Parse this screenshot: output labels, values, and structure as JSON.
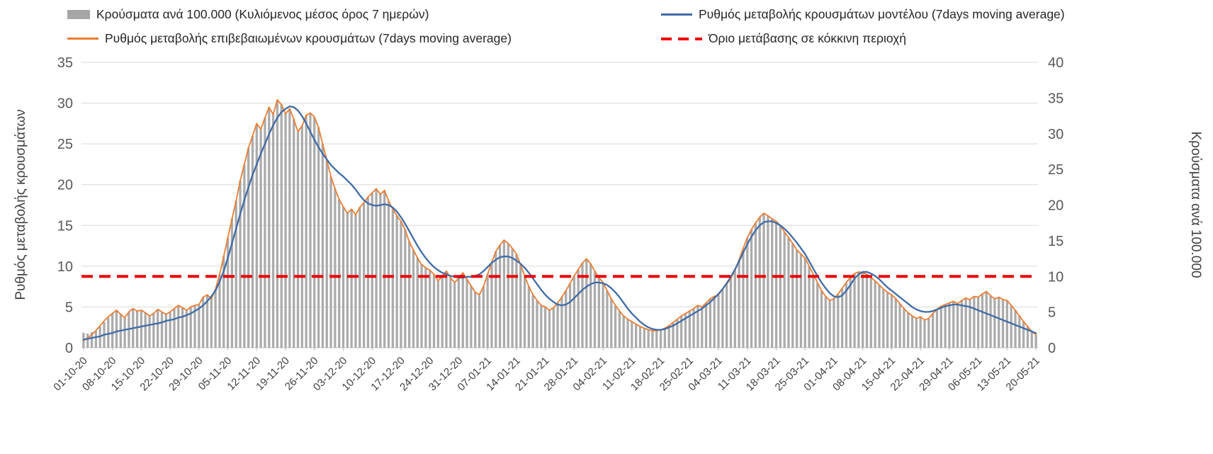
{
  "legend": [
    {
      "label": "Κρούσματα ανά 100.000 (Κυλιόμενος μέσος όρος 7 ημερών)",
      "swatch": "bar",
      "color": "#A6A6A6"
    },
    {
      "label": "Ρυθμός μεταβολής κρουσμάτων μοντέλου (7days moving average)",
      "swatch": "line",
      "color": "#3F6BA6"
    },
    {
      "label": "Ρυθμός μεταβολής επιβεβαιωμένων κρουσμάτων (7days moving average)",
      "swatch": "line",
      "color": "#ED7D31"
    },
    {
      "label": "Όριο μετάβασης σε κόκκινη περιοχή",
      "swatch": "dash",
      "color": "#EE0000"
    }
  ],
  "chart_data": {
    "type": "bar+line",
    "title": "",
    "x": {
      "tick_labels": [
        "01-10-20",
        "08-10-20",
        "15-10-20",
        "22-10-20",
        "29-10-20",
        "05-11-20",
        "12-11-20",
        "19-11-20",
        "26-11-20",
        "03-12-20",
        "10-12-20",
        "17-12-20",
        "24-12-20",
        "31-12-20",
        "07-01-21",
        "14-01-21",
        "21-01-21",
        "28-01-21",
        "04-02-21",
        "11-02-21",
        "18-02-21",
        "25-02-21",
        "04-03-21",
        "11-03-21",
        "18-03-21",
        "25-03-21",
        "01-04-21",
        "08-04-21",
        "15-04-21",
        "22-04-21",
        "29-04-21",
        "06-05-21",
        "13-05-21",
        "20-05-21"
      ],
      "points_per_tick": 7
    },
    "left_axis": {
      "label": "Ρυθμός μεταβολής κρουσμάτων",
      "min": 0,
      "max": 35,
      "step": 5
    },
    "right_axis": {
      "label": "Κρούσματα ανά 100.000",
      "min": 0,
      "max": 40,
      "step": 5
    },
    "threshold": {
      "name": "Όριο μετάβασης σε κόκκινη περιοχή",
      "axis": "left",
      "value": 8.75,
      "color": "#EE0000"
    },
    "grid_color": "#D9D9D9",
    "axis_line_color": "#BFBFBF",
    "tick_text_color": "#595959",
    "x_text_color": "#404040",
    "series": [
      {
        "name": "Κρούσματα ανά 100.000 (Κυλιόμενος μέσος όρος 7 ημερών)",
        "type": "bar",
        "axis": "right",
        "color": "#ABABAB",
        "values": [
          2.1,
          2.0,
          2.2,
          2.4,
          3.0,
          3.6,
          4.2,
          4.8,
          5.3,
          4.7,
          4.2,
          5.0,
          5.5,
          5.1,
          5.3,
          4.9,
          4.5,
          4.8,
          5.4,
          5.0,
          4.7,
          5.0,
          5.5,
          5.9,
          5.6,
          5.3,
          5.7,
          5.9,
          6.1,
          7.1,
          7.4,
          6.9,
          8.2,
          10.3,
          12.8,
          15.4,
          18.1,
          20.6,
          23.4,
          25.7,
          28.0,
          29.7,
          31.4,
          30.6,
          32.2,
          33.7,
          32.7,
          34.7,
          34.1,
          32.8,
          33.5,
          32.0,
          30.3,
          31.1,
          32.6,
          32.9,
          32.3,
          30.9,
          28.6,
          26.3,
          24.0,
          22.3,
          20.8,
          19.8,
          18.9,
          19.4,
          18.6,
          19.7,
          20.3,
          21.1,
          21.7,
          22.3,
          21.5,
          22.1,
          20.6,
          19.4,
          18.5,
          17.7,
          16.6,
          14.9,
          13.7,
          12.6,
          11.7,
          11.2,
          10.9,
          10.3,
          9.4,
          10.1,
          10.7,
          9.8,
          9.1,
          9.7,
          10.5,
          9.6,
          8.7,
          7.8,
          7.4,
          8.6,
          10.3,
          12.0,
          13.5,
          14.4,
          15.1,
          14.6,
          13.9,
          13.1,
          11.7,
          10.1,
          8.6,
          7.4,
          6.6,
          5.9,
          5.7,
          5.3,
          5.6,
          6.3,
          7.1,
          8.0,
          9.0,
          10.1,
          11.0,
          11.9,
          12.5,
          11.8,
          10.7,
          9.8,
          9.1,
          8.0,
          6.9,
          5.9,
          5.1,
          4.5,
          4.0,
          3.7,
          3.3,
          3.0,
          2.7,
          2.5,
          2.4,
          2.4,
          2.5,
          2.7,
          3.1,
          3.5,
          4.0,
          4.5,
          4.8,
          5.1,
          5.5,
          5.9,
          5.7,
          6.3,
          6.9,
          7.2,
          7.4,
          8.2,
          8.9,
          9.7,
          10.9,
          12.3,
          13.9,
          15.4,
          16.6,
          17.5,
          18.3,
          18.9,
          18.5,
          18.1,
          17.7,
          17.1,
          16.2,
          15.4,
          14.6,
          13.7,
          13.1,
          12.6,
          11.4,
          10.3,
          9.1,
          8.0,
          7.2,
          6.6,
          6.9,
          7.5,
          8.3,
          9.1,
          9.8,
          10.4,
          10.6,
          10.5,
          10.3,
          9.8,
          9.4,
          8.8,
          8.2,
          7.8,
          7.4,
          6.9,
          6.2,
          5.5,
          4.9,
          4.5,
          4.1,
          4.3,
          3.9,
          4.1,
          4.8,
          5.4,
          5.8,
          6.1,
          6.3,
          6.5,
          6.2,
          6.6,
          7.0,
          6.7,
          7.2,
          7.1,
          7.5,
          7.9,
          7.3,
          6.9,
          7.1,
          6.7,
          6.6,
          5.9,
          5.3,
          4.5,
          3.7,
          3.0,
          2.3,
          1.8
        ]
      },
      {
        "name": "Ρυθμός μεταβολής επιβεβαιωμένων κρουσμάτων (7days moving average)",
        "type": "line",
        "axis": "left",
        "color": "#ED7D31",
        "values": [
          0.9,
          1.2,
          1.6,
          2.1,
          2.7,
          3.3,
          3.8,
          4.2,
          4.6,
          4.1,
          3.7,
          4.4,
          4.8,
          4.5,
          4.6,
          4.3,
          3.9,
          4.2,
          4.7,
          4.4,
          4.1,
          4.4,
          4.8,
          5.2,
          4.9,
          4.6,
          5.0,
          5.2,
          5.3,
          6.2,
          6.5,
          6.0,
          7.2,
          9.0,
          11.2,
          13.5,
          15.8,
          18.0,
          20.5,
          22.5,
          24.5,
          26.0,
          27.5,
          26.8,
          28.2,
          29.5,
          28.6,
          30.4,
          29.8,
          28.7,
          29.3,
          28.0,
          26.5,
          27.2,
          28.5,
          28.8,
          28.3,
          27.0,
          25.0,
          23.0,
          21.0,
          19.5,
          18.2,
          17.3,
          16.5,
          17.0,
          16.3,
          17.2,
          17.8,
          18.5,
          19.0,
          19.5,
          18.8,
          19.3,
          18.0,
          17.0,
          16.2,
          15.5,
          14.5,
          13.0,
          12.0,
          11.0,
          10.2,
          9.8,
          9.5,
          9.0,
          8.2,
          8.8,
          9.4,
          8.6,
          8.0,
          8.5,
          9.2,
          8.4,
          7.6,
          6.8,
          6.5,
          7.5,
          9.0,
          10.5,
          11.8,
          12.6,
          13.2,
          12.8,
          12.2,
          11.5,
          10.2,
          8.8,
          7.5,
          6.5,
          5.8,
          5.2,
          5.0,
          4.6,
          4.9,
          5.5,
          6.2,
          7.0,
          7.9,
          8.8,
          9.6,
          10.4,
          10.9,
          10.3,
          9.4,
          8.6,
          8.0,
          7.0,
          6.0,
          5.2,
          4.5,
          3.9,
          3.5,
          3.2,
          2.9,
          2.6,
          2.4,
          2.2,
          2.1,
          2.1,
          2.2,
          2.4,
          2.7,
          3.1,
          3.5,
          3.9,
          4.2,
          4.5,
          4.8,
          5.2,
          5.0,
          5.5,
          6.0,
          6.3,
          6.5,
          7.2,
          7.8,
          8.5,
          9.5,
          10.8,
          12.2,
          13.5,
          14.5,
          15.3,
          16.0,
          16.5,
          16.2,
          15.8,
          15.5,
          15.0,
          14.2,
          13.5,
          12.8,
          12.0,
          11.5,
          11.0,
          10.0,
          9.0,
          8.0,
          7.0,
          6.3,
          5.8,
          6.0,
          6.6,
          7.3,
          8.0,
          8.6,
          9.1,
          9.3,
          9.2,
          9.0,
          8.6,
          8.2,
          7.7,
          7.2,
          6.8,
          6.5,
          6.0,
          5.4,
          4.8,
          4.3,
          3.9,
          3.6,
          3.8,
          3.4,
          3.6,
          4.2,
          4.7,
          5.1,
          5.3,
          5.5,
          5.7,
          5.4,
          5.8,
          6.1,
          5.9,
          6.3,
          6.2,
          6.6,
          6.9,
          6.4,
          6.0,
          6.2,
          5.9,
          5.8,
          5.2,
          4.6,
          3.9,
          3.2,
          2.6,
          2.0,
          1.6
        ]
      },
      {
        "name": "Ρυθμός μεταβολής κρουσμάτων μοντέλου (7days moving average)",
        "type": "line",
        "axis": "left",
        "color": "#3F6BA6",
        "values": [
          1.0,
          1.1,
          1.2,
          1.3,
          1.4,
          1.6,
          1.7,
          1.8,
          2.0,
          2.1,
          2.2,
          2.3,
          2.4,
          2.5,
          2.6,
          2.7,
          2.8,
          2.9,
          3.0,
          3.1,
          3.3,
          3.4,
          3.5,
          3.7,
          3.8,
          4.0,
          4.2,
          4.5,
          4.8,
          5.2,
          5.7,
          6.3,
          7.0,
          8.1,
          9.4,
          11.0,
          12.8,
          14.6,
          16.4,
          18.1,
          19.7,
          21.2,
          22.5,
          23.8,
          25.0,
          26.2,
          27.3,
          28.2,
          28.9,
          29.3,
          29.6,
          29.5,
          29.1,
          28.4,
          27.5,
          26.5,
          25.5,
          24.6,
          23.8,
          23.1,
          22.4,
          21.9,
          21.4,
          21.0,
          20.5,
          20.0,
          19.4,
          18.7,
          18.1,
          17.7,
          17.5,
          17.4,
          17.5,
          17.6,
          17.5,
          17.2,
          16.7,
          16.0,
          15.2,
          14.3,
          13.4,
          12.5,
          11.7,
          11.0,
          10.4,
          9.9,
          9.5,
          9.2,
          9.0,
          8.8,
          8.7,
          8.6,
          8.6,
          8.7,
          8.7,
          8.8,
          9.0,
          9.4,
          9.9,
          10.4,
          10.8,
          11.1,
          11.2,
          11.2,
          11.0,
          10.7,
          10.3,
          9.8,
          9.2,
          8.5,
          7.8,
          7.1,
          6.5,
          6.0,
          5.6,
          5.3,
          5.2,
          5.3,
          5.6,
          6.1,
          6.6,
          7.1,
          7.5,
          7.8,
          8.0,
          8.0,
          7.9,
          7.7,
          7.3,
          6.8,
          6.2,
          5.5,
          4.8,
          4.2,
          3.7,
          3.2,
          2.8,
          2.5,
          2.3,
          2.2,
          2.2,
          2.3,
          2.5,
          2.7,
          3.0,
          3.3,
          3.6,
          3.9,
          4.2,
          4.5,
          4.8,
          5.2,
          5.6,
          6.1,
          6.6,
          7.2,
          7.9,
          8.7,
          9.6,
          10.6,
          11.7,
          12.7,
          13.6,
          14.4,
          15.0,
          15.4,
          15.5,
          15.5,
          15.3,
          15.0,
          14.6,
          14.1,
          13.5,
          12.9,
          12.2,
          11.5,
          10.6,
          9.7,
          8.8,
          8.0,
          7.3,
          6.7,
          6.3,
          6.2,
          6.4,
          7.0,
          7.7,
          8.5,
          9.0,
          9.3,
          9.3,
          9.1,
          8.8,
          8.4,
          7.9,
          7.4,
          7.0,
          6.6,
          6.2,
          5.8,
          5.4,
          5.0,
          4.7,
          4.5,
          4.4,
          4.4,
          4.5,
          4.7,
          4.9,
          5.1,
          5.2,
          5.3,
          5.3,
          5.2,
          5.1,
          5.0,
          4.8,
          4.6,
          4.4,
          4.2,
          4.0,
          3.8,
          3.6,
          3.4,
          3.2,
          3.0,
          2.8,
          2.6,
          2.4,
          2.2,
          2.0,
          1.8
        ]
      }
    ]
  }
}
